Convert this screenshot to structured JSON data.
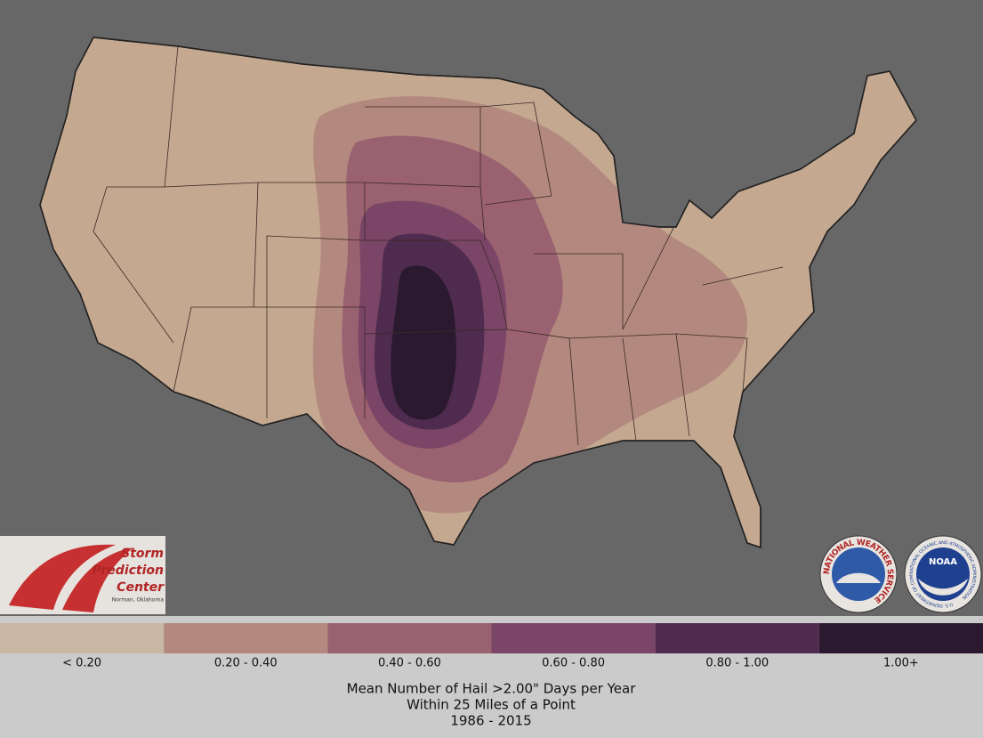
{
  "logos": {
    "spc": {
      "lines": [
        "Storm",
        "Prediction",
        "Center"
      ],
      "location": "Norman, Oklahoma"
    },
    "nws": "NATIONAL WEATHER SERVICE",
    "noaa": {
      "name": "NOAA",
      "ring": "NATIONAL OCEANIC AND ATMOSPHERIC ADMINISTRATION",
      "dept": "U.S. DEPARTMENT OF COMMERCE"
    }
  },
  "legend": [
    {
      "label": "< 0.20",
      "color": "#c7b7a3"
    },
    {
      "label": "0.20 - 0.40",
      "color": "#b3897f"
    },
    {
      "label": "0.40 - 0.60",
      "color": "#9a6170"
    },
    {
      "label": "0.60 - 0.80",
      "color": "#7a4567"
    },
    {
      "label": "0.80 - 1.00",
      "color": "#4f2b4f"
    },
    {
      "label": "1.00+",
      "color": "#2b1a2f"
    }
  ],
  "caption": [
    "Mean Number of Hail >2.00\" Days per Year",
    "Within 25 Miles of a Point",
    "1986 - 2015"
  ]
}
